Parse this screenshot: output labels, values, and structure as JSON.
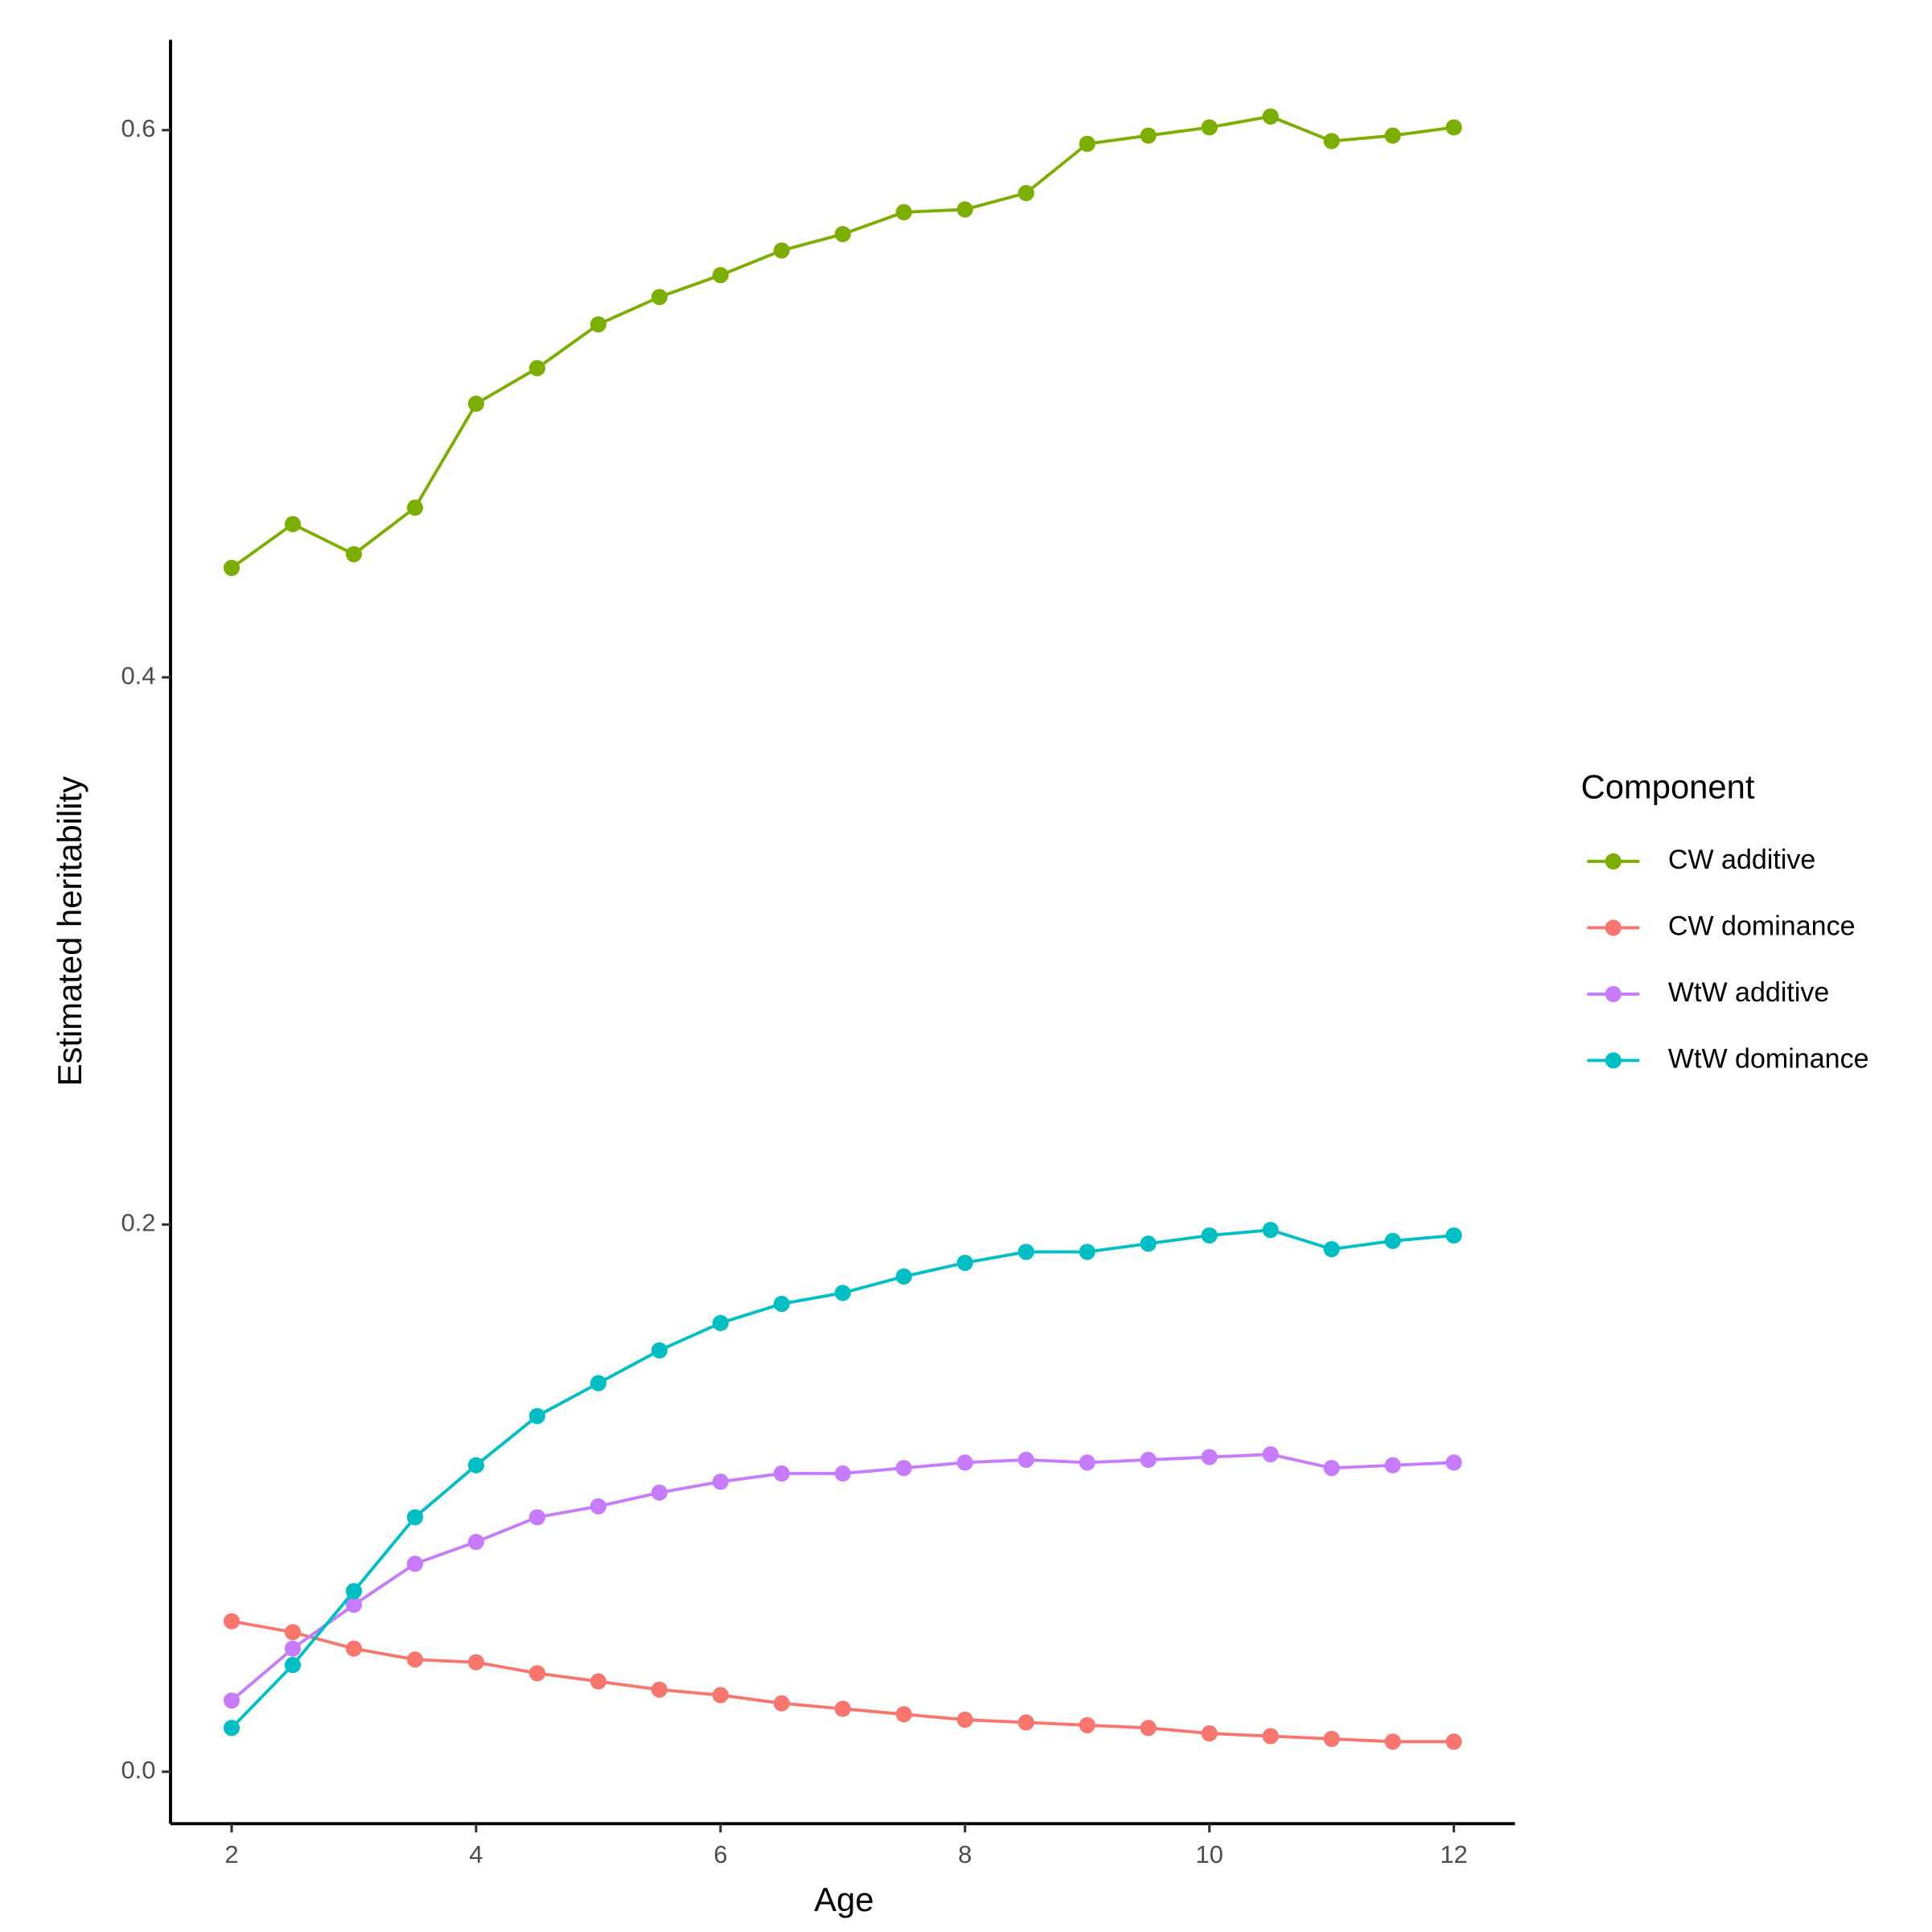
{
  "chart_data": {
    "type": "line",
    "x_label": "Age",
    "y_label": "Estimated heritability",
    "legend_title": "Component",
    "x": [
      2,
      2.5,
      3,
      3.5,
      4,
      4.5,
      5,
      5.5,
      6,
      6.5,
      7,
      7.5,
      8,
      8.5,
      9,
      9.5,
      10,
      10.5,
      11,
      11.5,
      12
    ],
    "series": [
      {
        "name": "CW additive",
        "color": "#7CAE00",
        "values": [
          0.44,
          0.456,
          0.445,
          0.462,
          0.5,
          0.513,
          0.529,
          0.539,
          0.547,
          0.556,
          0.562,
          0.57,
          0.571,
          0.577,
          0.595,
          0.598,
          0.601,
          0.605,
          0.596,
          0.598,
          0.601
        ]
      },
      {
        "name": "CW dominance",
        "color": "#F8766D",
        "values": [
          0.055,
          0.051,
          0.045,
          0.041,
          0.04,
          0.036,
          0.033,
          0.03,
          0.028,
          0.025,
          0.023,
          0.021,
          0.019,
          0.018,
          0.017,
          0.016,
          0.014,
          0.013,
          0.012,
          0.011,
          0.011
        ]
      },
      {
        "name": "WtW additive",
        "color": "#C77CFF",
        "values": [
          0.026,
          0.045,
          0.061,
          0.076,
          0.084,
          0.093,
          0.097,
          0.102,
          0.106,
          0.109,
          0.109,
          0.111,
          0.113,
          0.114,
          0.113,
          0.114,
          0.115,
          0.116,
          0.111,
          0.112,
          0.113
        ]
      },
      {
        "name": "WtW dominance",
        "color": "#00BFC4",
        "values": [
          0.016,
          0.039,
          0.066,
          0.093,
          0.112,
          0.13,
          0.142,
          0.154,
          0.164,
          0.171,
          0.175,
          0.181,
          0.186,
          0.19,
          0.19,
          0.193,
          0.196,
          0.198,
          0.191,
          0.194,
          0.196
        ]
      }
    ],
    "xlim": [
      1.5,
      12.5
    ],
    "xticks": [
      2,
      4,
      6,
      8,
      10,
      12
    ],
    "ylim": [
      -0.019,
      0.633
    ],
    "yticks": [
      {
        "value": 0,
        "label": "0.0"
      },
      0.2,
      0.4,
      0.6
    ],
    "grid": false,
    "legend": "right"
  }
}
